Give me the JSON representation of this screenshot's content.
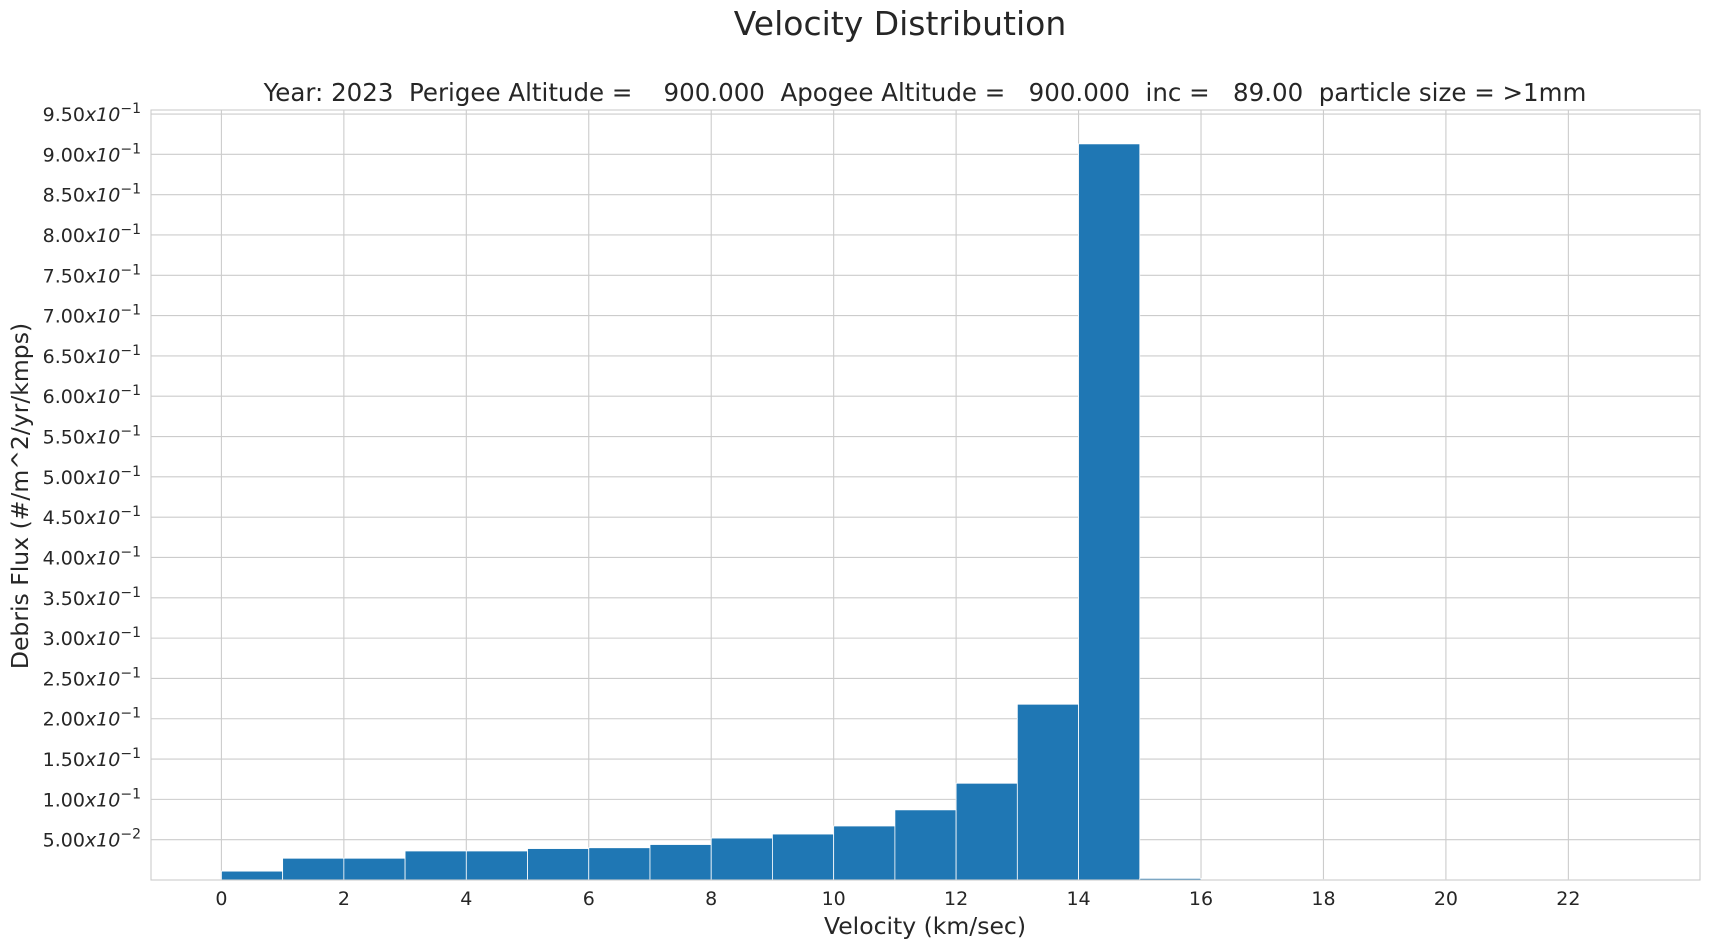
{
  "chart_data": {
    "type": "bar",
    "title": "Velocity Distribution",
    "subtitle": "Year: 2023  Perigee Altitude =    900.000  Apogee Altitude =   900.000  inc =   89.00  particle size = >1mm",
    "xlabel": "Velocity (km/sec)",
    "ylabel": "Debris Flux (#/m^2/yr/kmps)",
    "xlim": [
      -1.15,
      24.15
    ],
    "ylim": [
      0,
      0.955
    ],
    "grid": true,
    "color": "#1f77b4",
    "x_ticks": [
      0,
      2,
      4,
      6,
      8,
      10,
      12,
      14,
      16,
      18,
      20,
      22
    ],
    "y_ticks": [
      {
        "value": 0.05,
        "mantissa": "5.00",
        "exponent": "−2"
      },
      {
        "value": 0.1,
        "mantissa": "1.00",
        "exponent": "−1"
      },
      {
        "value": 0.15,
        "mantissa": "1.50",
        "exponent": "−1"
      },
      {
        "value": 0.2,
        "mantissa": "2.00",
        "exponent": "−1"
      },
      {
        "value": 0.25,
        "mantissa": "2.50",
        "exponent": "−1"
      },
      {
        "value": 0.3,
        "mantissa": "3.00",
        "exponent": "−1"
      },
      {
        "value": 0.35,
        "mantissa": "3.50",
        "exponent": "−1"
      },
      {
        "value": 0.4,
        "mantissa": "4.00",
        "exponent": "−1"
      },
      {
        "value": 0.45,
        "mantissa": "4.50",
        "exponent": "−1"
      },
      {
        "value": 0.5,
        "mantissa": "5.00",
        "exponent": "−1"
      },
      {
        "value": 0.55,
        "mantissa": "5.50",
        "exponent": "−1"
      },
      {
        "value": 0.6,
        "mantissa": "6.00",
        "exponent": "−1"
      },
      {
        "value": 0.65,
        "mantissa": "6.50",
        "exponent": "−1"
      },
      {
        "value": 0.7,
        "mantissa": "7.00",
        "exponent": "−1"
      },
      {
        "value": 0.75,
        "mantissa": "7.50",
        "exponent": "−1"
      },
      {
        "value": 0.8,
        "mantissa": "8.00",
        "exponent": "−1"
      },
      {
        "value": 0.85,
        "mantissa": "8.50",
        "exponent": "−1"
      },
      {
        "value": 0.9,
        "mantissa": "9.00",
        "exponent": "−1"
      },
      {
        "value": 0.95,
        "mantissa": "9.50",
        "exponent": "−1"
      }
    ],
    "bins": [
      {
        "x0": 0,
        "x1": 1,
        "value": 0.011
      },
      {
        "x0": 1,
        "x1": 2,
        "value": 0.027
      },
      {
        "x0": 2,
        "x1": 3,
        "value": 0.027
      },
      {
        "x0": 3,
        "x1": 4,
        "value": 0.036
      },
      {
        "x0": 4,
        "x1": 5,
        "value": 0.036
      },
      {
        "x0": 5,
        "x1": 6,
        "value": 0.039
      },
      {
        "x0": 6,
        "x1": 7,
        "value": 0.04
      },
      {
        "x0": 7,
        "x1": 8,
        "value": 0.044
      },
      {
        "x0": 8,
        "x1": 9,
        "value": 0.052
      },
      {
        "x0": 9,
        "x1": 10,
        "value": 0.057
      },
      {
        "x0": 10,
        "x1": 11,
        "value": 0.067
      },
      {
        "x0": 11,
        "x1": 12,
        "value": 0.087
      },
      {
        "x0": 12,
        "x1": 13,
        "value": 0.12
      },
      {
        "x0": 13,
        "x1": 14,
        "value": 0.218
      },
      {
        "x0": 14,
        "x1": 15,
        "value": 0.913
      },
      {
        "x0": 15,
        "x1": 16,
        "value": 0.002
      },
      {
        "x0": 16,
        "x1": 17,
        "value": 0.001
      },
      {
        "x0": 17,
        "x1": 18,
        "value": 0.0005
      },
      {
        "x0": 18,
        "x1": 19,
        "value": 0.0003
      },
      {
        "x0": 19,
        "x1": 20,
        "value": 0.0003
      },
      {
        "x0": 20,
        "x1": 21,
        "value": 0.0002
      },
      {
        "x0": 21,
        "x1": 22,
        "value": 0.0002
      },
      {
        "x0": 22,
        "x1": 23,
        "value": 0.0002
      }
    ]
  }
}
